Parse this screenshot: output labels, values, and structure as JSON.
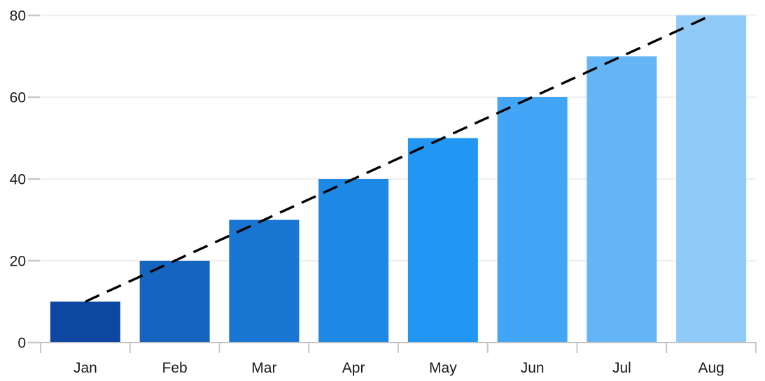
{
  "chart_data": {
    "type": "bar",
    "title": "",
    "xlabel": "",
    "ylabel": "",
    "categories": [
      "Jan",
      "Feb",
      "Mar",
      "Apr",
      "May",
      "Jun",
      "Jul",
      "Aug"
    ],
    "values": [
      10,
      20,
      30,
      40,
      50,
      60,
      70,
      80
    ],
    "bar_colors": [
      "#0d47a1",
      "#1565c0",
      "#1976d2",
      "#1e88e5",
      "#2196f3",
      "#42a5f5",
      "#64b5f6",
      "#90caf9"
    ],
    "ylim": [
      0,
      80
    ],
    "yticks": [
      0,
      20,
      40,
      60,
      80
    ],
    "ytick_labels": [
      "0",
      "20",
      "40",
      "60",
      "80"
    ],
    "grid": true,
    "legend": "none",
    "trend_line": {
      "type": "linear",
      "style": "dashed",
      "color": "#000000",
      "from": {
        "category": "Jan",
        "value": 10
      },
      "to": {
        "category": "Aug",
        "value": 80
      }
    },
    "colors": {
      "gridline": "#f0f0f0",
      "axis_line": "#c2c2c2",
      "tick": "#c8c8c8",
      "label_text": "#1a1a1a",
      "background": "#ffffff"
    }
  }
}
